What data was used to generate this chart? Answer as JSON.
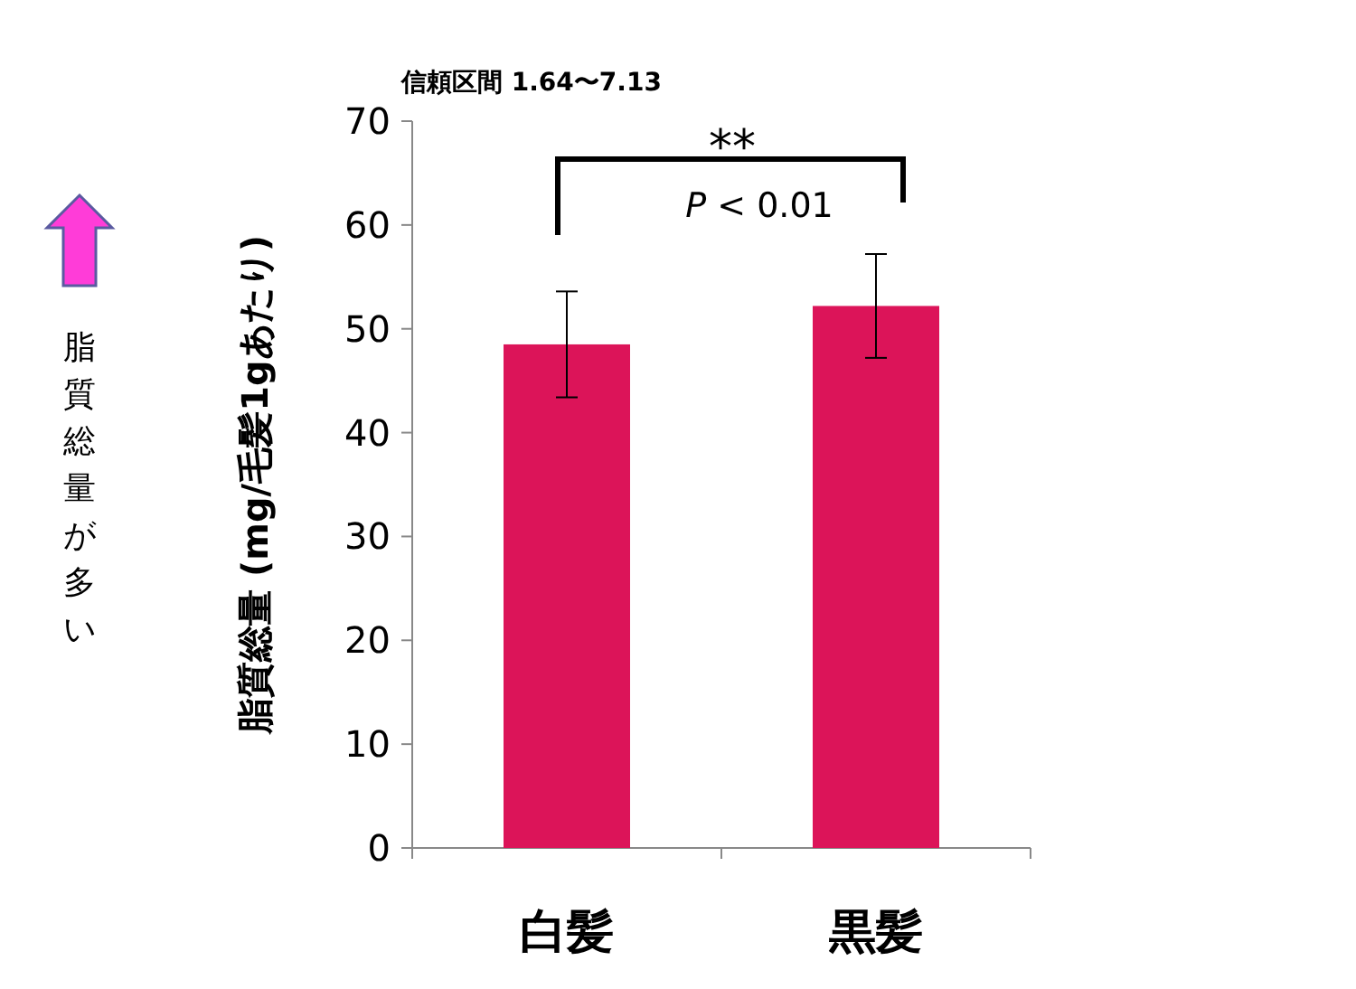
{
  "chart_data": {
    "type": "bar",
    "title": "信頼区間 1.64〜7.13",
    "ylabel": "脂質総量 (mg/毛髪1gあたり)",
    "categories": [
      "白髪",
      "黒髪"
    ],
    "values": [
      48.5,
      52.2
    ],
    "errors": [
      5.1,
      5.0
    ],
    "color": "#dc1459",
    "ylim": [
      0,
      70
    ],
    "yticks": [
      0,
      10,
      20,
      30,
      40,
      50,
      60,
      70
    ],
    "annotations": [
      "**",
      "*P* < 0.01",
      "脂質総量が多い"
    ]
  }
}
